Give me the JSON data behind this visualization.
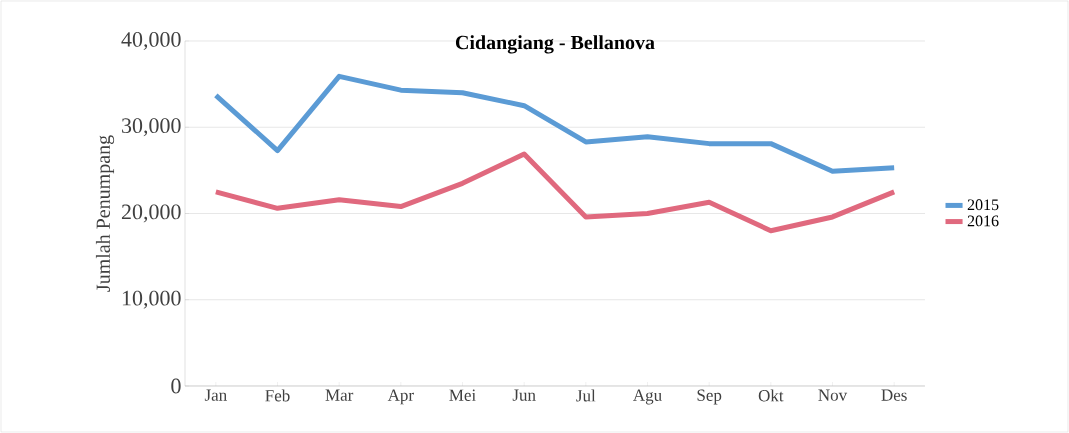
{
  "chart_data": {
    "type": "line",
    "title": "Cidangiang - Bellanova",
    "ylabel": "Jumlah Penumpang",
    "categories": [
      "Jan",
      "Feb",
      "Mar",
      "Apr",
      "Mei",
      "Jun",
      "Jul",
      "Agu",
      "Sep",
      "Okt",
      "Nov",
      "Des"
    ],
    "series": [
      {
        "name": "2015",
        "color": "#5b9bd5",
        "values": [
          33700,
          27300,
          35900,
          34300,
          34000,
          32500,
          28300,
          28900,
          28100,
          28100,
          24900,
          25300
        ]
      },
      {
        "name": "2016",
        "color": "#e0697e",
        "values": [
          22500,
          20600,
          21600,
          20800,
          23500,
          26900,
          19600,
          20000,
          21300,
          18000,
          19600,
          22500
        ]
      }
    ],
    "ylim": [
      0,
      40000
    ],
    "yticks": [
      {
        "value": 0,
        "label": "0"
      },
      {
        "value": 10000,
        "label": "10,000"
      },
      {
        "value": 20000,
        "label": "20,000"
      },
      {
        "value": 30000,
        "label": "30,000"
      },
      {
        "value": 40000,
        "label": "40,000"
      }
    ],
    "grid": "y",
    "legend": "right",
    "marker": "none",
    "line_style": "solid"
  }
}
